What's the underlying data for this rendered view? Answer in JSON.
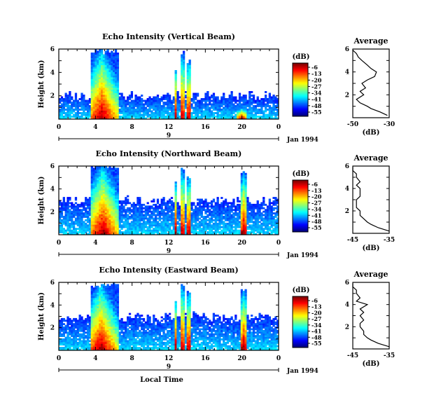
{
  "chart_data": [
    {
      "type": "heatmap",
      "title": "Echo Intensity (Vertical Beam)",
      "ylabel": "Height (km)",
      "xlabel": "",
      "x_ticks": [
        "0",
        "4",
        "8",
        "12",
        "16",
        "20",
        "0"
      ],
      "y_ticks": [
        "2",
        "4",
        "6"
      ],
      "xlim": [
        0,
        24
      ],
      "ylim": [
        0,
        6
      ],
      "day_label": "9",
      "date_label": "Jan 1994",
      "colorbar": {
        "label": "(dB)",
        "ticks": [
          "-6",
          "-13",
          "-20",
          "-27",
          "-34",
          "-41",
          "-48",
          "-55"
        ]
      },
      "echo_regions": [
        {
          "start": 3.5,
          "end": 6.5,
          "top": 5.8,
          "peak": 4.7
        },
        {
          "start": 12.6,
          "end": 12.9,
          "top": 4.2,
          "peak": 12.75
        },
        {
          "start": 13.3,
          "end": 13.7,
          "top": 5.7,
          "peak": 13.5
        },
        {
          "start": 14.0,
          "end": 14.5,
          "top": 5.0,
          "peak": 14.2
        },
        {
          "start": 19.5,
          "end": 20.6,
          "top": 1.0,
          "peak": 20.0
        }
      ],
      "background_layer_top": 2.0,
      "profile": {
        "title": "Average",
        "xlabel": "(dB)",
        "x_ticks": [
          "-50",
          "-30"
        ],
        "xlim": [
          -50,
          -30
        ],
        "y_ticks": [
          "2",
          "4",
          "6"
        ],
        "heights": [
          0.2,
          0.5,
          0.8,
          1.0,
          1.3,
          1.6,
          2.0,
          2.3,
          2.6,
          3.0,
          3.3,
          3.6,
          4.0,
          4.3,
          4.6,
          5.0,
          5.3,
          5.6,
          5.9
        ],
        "values": [
          -31,
          -35,
          -40,
          -42,
          -46,
          -48,
          -44,
          -46,
          -43,
          -45,
          -42,
          -38,
          -37,
          -40,
          -42,
          -45,
          -47,
          -48,
          -50
        ]
      }
    },
    {
      "type": "heatmap",
      "title": "Echo Intensity (Northward Beam)",
      "ylabel": "Height (km)",
      "xlabel": "",
      "x_ticks": [
        "0",
        "4",
        "8",
        "12",
        "16",
        "20",
        "0"
      ],
      "y_ticks": [
        "2",
        "4",
        "6"
      ],
      "xlim": [
        0,
        24
      ],
      "ylim": [
        0,
        6
      ],
      "day_label": "9",
      "date_label": "Jan 1994",
      "colorbar": {
        "label": "(dB)",
        "ticks": [
          "-6",
          "-13",
          "-20",
          "-27",
          "-34",
          "-41",
          "-48",
          "-55"
        ]
      },
      "echo_regions": [
        {
          "start": 3.5,
          "end": 6.5,
          "top": 6.0,
          "peak": 4.8
        },
        {
          "start": 12.6,
          "end": 12.9,
          "top": 4.5,
          "peak": 12.75
        },
        {
          "start": 13.3,
          "end": 13.7,
          "top": 5.8,
          "peak": 13.5
        },
        {
          "start": 14.0,
          "end": 14.5,
          "top": 5.2,
          "peak": 14.2
        },
        {
          "start": 19.8,
          "end": 20.6,
          "top": 5.5,
          "peak": 20.2
        }
      ],
      "background_layer_top": 3.0,
      "profile": {
        "title": "Average",
        "xlabel": "(dB)",
        "x_ticks": [
          "-45",
          "-35"
        ],
        "xlim": [
          -45,
          -35
        ],
        "y_ticks": [
          "2",
          "4",
          "6"
        ],
        "heights": [
          0.2,
          0.5,
          0.8,
          1.0,
          1.3,
          1.6,
          2.0,
          2.3,
          2.6,
          3.0,
          3.3,
          3.6,
          4.0,
          4.3,
          4.6,
          5.0,
          5.3,
          5.6,
          5.9
        ],
        "values": [
          -35,
          -38,
          -40,
          -41,
          -42,
          -43,
          -43,
          -44,
          -44,
          -44,
          -43,
          -43,
          -43,
          -44,
          -43,
          -44,
          -44,
          -45,
          -45
        ]
      }
    },
    {
      "type": "heatmap",
      "title": "Echo Intensity (Eastward Beam)",
      "ylabel": "Height (km)",
      "xlabel": "Local Time",
      "x_ticks": [
        "0",
        "4",
        "8",
        "12",
        "16",
        "20",
        "0"
      ],
      "y_ticks": [
        "2",
        "4",
        "6"
      ],
      "xlim": [
        0,
        24
      ],
      "ylim": [
        0,
        6
      ],
      "day_label": "9",
      "date_label": "Jan 1994",
      "colorbar": {
        "label": "(dB)",
        "ticks": [
          "-6",
          "-13",
          "-20",
          "-27",
          "-34",
          "-41",
          "-48",
          "-55"
        ]
      },
      "echo_regions": [
        {
          "start": 3.5,
          "end": 6.5,
          "top": 5.8,
          "peak": 4.6
        },
        {
          "start": 12.6,
          "end": 12.9,
          "top": 4.5,
          "peak": 12.75
        },
        {
          "start": 13.3,
          "end": 13.7,
          "top": 5.8,
          "peak": 13.5
        },
        {
          "start": 14.0,
          "end": 14.5,
          "top": 5.2,
          "peak": 14.2
        },
        {
          "start": 19.8,
          "end": 20.6,
          "top": 5.3,
          "peak": 20.2
        }
      ],
      "background_layer_top": 3.0,
      "profile": {
        "title": "Average",
        "xlabel": "(dB)",
        "x_ticks": [
          "-45",
          "-35"
        ],
        "xlim": [
          -45,
          -35
        ],
        "y_ticks": [
          "2",
          "4",
          "6"
        ],
        "heights": [
          0.2,
          0.5,
          0.8,
          1.0,
          1.3,
          1.6,
          2.0,
          2.3,
          2.6,
          3.0,
          3.3,
          3.6,
          4.0,
          4.3,
          4.6,
          5.0,
          5.3,
          5.6,
          5.9
        ],
        "values": [
          -35,
          -38,
          -40,
          -41,
          -42,
          -42,
          -43,
          -43,
          -42,
          -43,
          -42,
          -43,
          -41,
          -44,
          -43,
          -44,
          -44,
          -45,
          -45
        ]
      }
    }
  ]
}
